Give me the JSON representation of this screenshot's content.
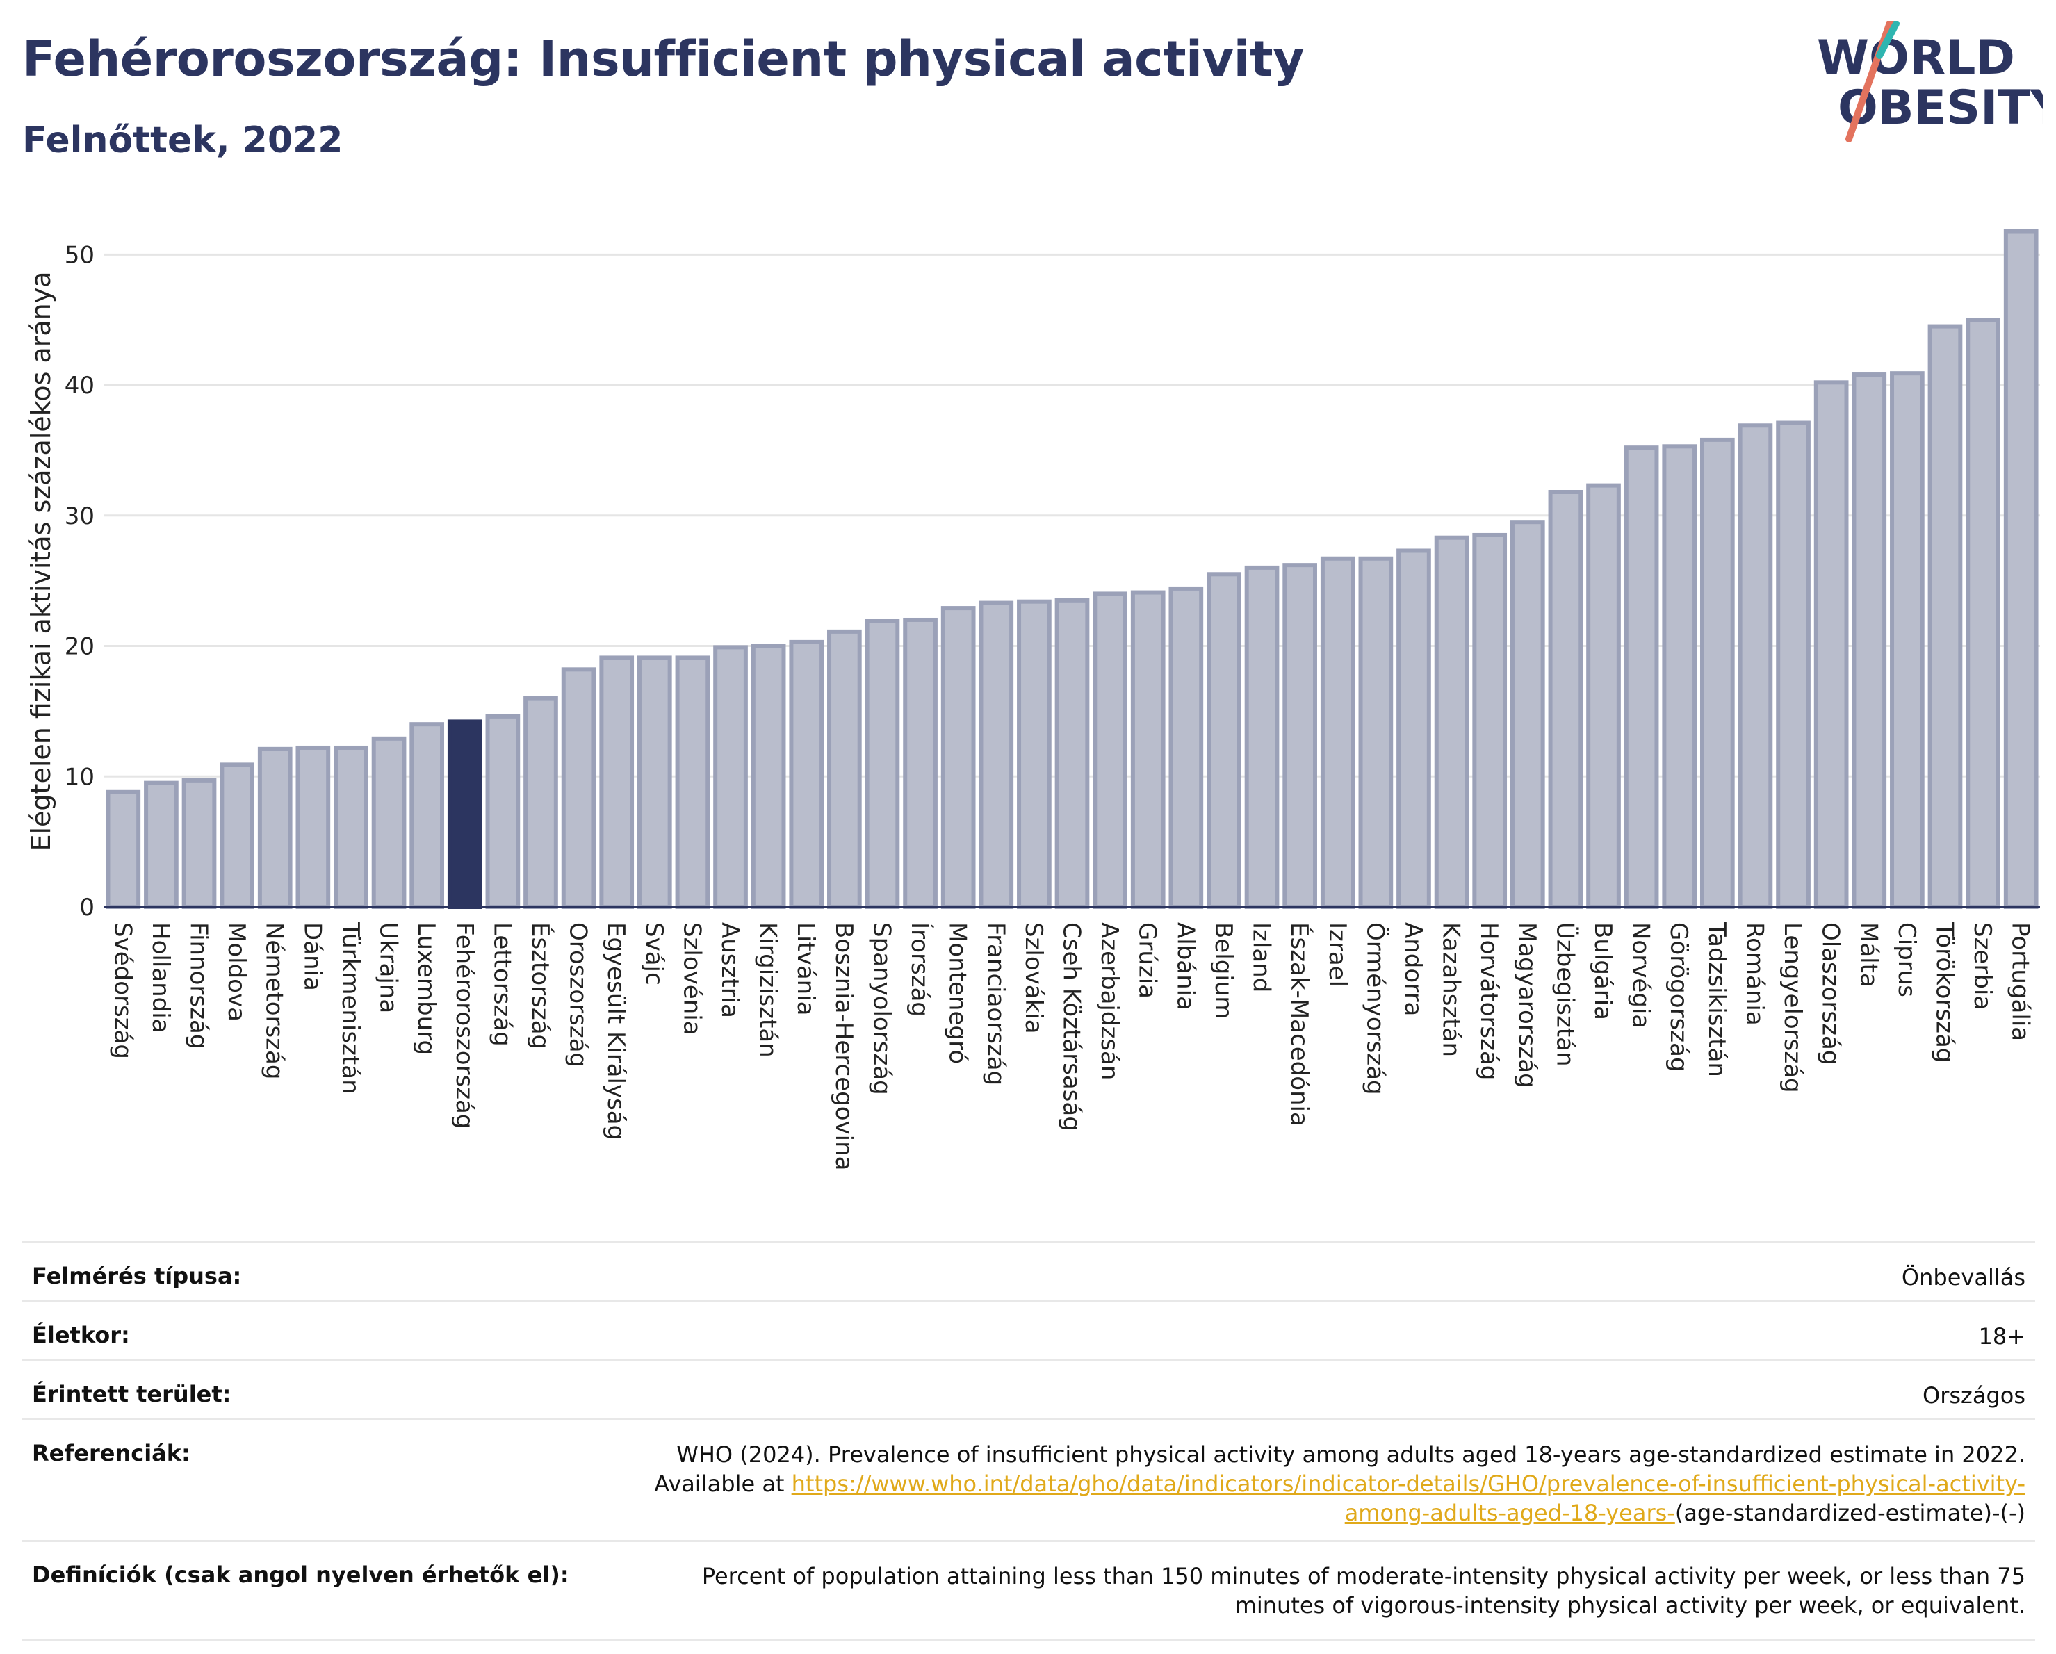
{
  "header": {
    "title": "Fehéroroszország: Insufficient physical activity",
    "subtitle": "Felnőttek, 2022"
  },
  "logo": {
    "line1": "WORLD",
    "line2": "OBESITY"
  },
  "colors": {
    "bar": "#b9bdcc",
    "bar_edge": "#9ba1b8",
    "highlight": "#2c3560",
    "text": "#2c3560"
  },
  "chart_data": {
    "type": "bar",
    "title": "Fehéroroszország: Insufficient physical activity",
    "subtitle": "Felnőttek, 2022",
    "xlabel": "",
    "ylabel": "Elégtelen fizikai aktivitás százalékos aránya",
    "ylim": [
      0,
      53
    ],
    "yticks": [
      0,
      10,
      20,
      30,
      40,
      50
    ],
    "grid": true,
    "highlight": "Fehéroroszország",
    "categories": [
      "Svédország",
      "Hollandia",
      "Finnország",
      "Moldova",
      "Németország",
      "Dánia",
      "Türkmenisztán",
      "Ukrajna",
      "Luxemburg",
      "Fehéroroszország",
      "Lettország",
      "Észtország",
      "Oroszország",
      "Egyesült Királyság",
      "Svájc",
      "Szlovénia",
      "Ausztria",
      "Kirgizisztán",
      "Litvánia",
      "Bosznia-Hercegovina",
      "Spanyolország",
      "Írország",
      "Montenegró",
      "Franciaország",
      "Szlovákia",
      "Cseh Köztársaság",
      "Azerbajdzsán",
      "Grúzia",
      "Albánia",
      "Belgium",
      "Izland",
      "Észak-Macedónia",
      "Izrael",
      "Örményország",
      "Andorra",
      "Kazahsztán",
      "Horvátország",
      "Magyarország",
      "Üzbegisztán",
      "Bulgária",
      "Norvégia",
      "Görögország",
      "Tadzsikisztán",
      "Románia",
      "Lengyelország",
      "Olaszország",
      "Málta",
      "Ciprus",
      "Törökország",
      "Szerbia",
      "Portugália"
    ],
    "values": [
      8.8,
      9.5,
      9.7,
      10.9,
      12.1,
      12.2,
      12.2,
      12.9,
      14.0,
      14.2,
      14.6,
      16.0,
      18.2,
      19.1,
      19.1,
      19.1,
      19.9,
      20.0,
      20.3,
      21.1,
      21.9,
      22.0,
      22.9,
      23.3,
      23.4,
      23.5,
      24.0,
      24.1,
      24.4,
      25.5,
      26.0,
      26.2,
      26.7,
      26.7,
      27.3,
      28.3,
      28.5,
      29.5,
      31.8,
      32.3,
      35.2,
      35.3,
      35.8,
      36.9,
      37.1,
      40.2,
      40.8,
      40.9,
      44.5,
      45.0,
      51.8
    ]
  },
  "meta": {
    "rows": [
      {
        "label": "Felmérés típusa:",
        "value": "Önbevallás"
      },
      {
        "label": "Életkor:",
        "value": "18+"
      },
      {
        "label": "Érintett terület:",
        "value": "Országos"
      }
    ],
    "references_label": "Referenciák:",
    "references_text": "WHO (2024). Prevalence of insufficient physical activity among adults aged 18-years age-standardized estimate in 2022. Available at",
    "references_link": "https://www.who.int/data/gho/data/indicators/indicator-details/GHO/prevalence-of-insufficient-physical-activity-among-adults-aged-18-years-",
    "references_suffix": "(age-standardized-estimate)-(-)",
    "definitions_label": "Definíciók (csak angol nyelven érhetők el):",
    "definitions_text": "Percent of population attaining less than 150 minutes of moderate-intensity physical activity per week, or less than 75 minutes of vigorous-intensity physical activity per week, or equivalent."
  }
}
